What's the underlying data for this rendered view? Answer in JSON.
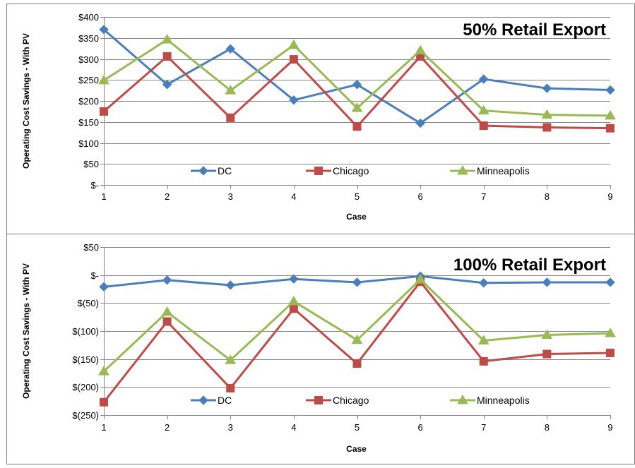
{
  "colors": {
    "DC": "#4a7ebb",
    "Chicago": "#be4b48",
    "Minneapolis": "#98b954",
    "frame": "#7f7f7f",
    "grid": "#868686"
  },
  "chart_data": [
    {
      "type": "line",
      "title": "50% Retail Export",
      "xlabel": "Case",
      "ylabel": "Operating Cost Savings - With PV",
      "categories": [
        "1",
        "2",
        "3",
        "4",
        "5",
        "6",
        "7",
        "8",
        "9"
      ],
      "ylim": [
        0,
        400
      ],
      "yticks": [
        0,
        50,
        100,
        150,
        200,
        250,
        300,
        350,
        400
      ],
      "ytick_labels": [
        "$-",
        "$50",
        "$100",
        "$150",
        "$200",
        "$250",
        "$300",
        "$350",
        "$400"
      ],
      "grid": "horizontal",
      "legend_position": "bottom-inside",
      "series": [
        {
          "name": "DC",
          "marker": "diamond",
          "values": [
            370,
            239,
            324,
            202,
            239,
            147,
            252,
            230,
            226
          ]
        },
        {
          "name": "Chicago",
          "marker": "square",
          "values": [
            175,
            306,
            160,
            299,
            139,
            306,
            141,
            137,
            135
          ]
        },
        {
          "name": "Minneapolis",
          "marker": "triangle",
          "values": [
            249,
            346,
            225,
            333,
            183,
            320,
            177,
            167,
            165
          ]
        }
      ]
    },
    {
      "type": "line",
      "title": "100% Retail Export",
      "xlabel": "Case",
      "ylabel": "Operating Cost Savings - With PV",
      "categories": [
        "1",
        "2",
        "3",
        "4",
        "5",
        "6",
        "7",
        "8",
        "9"
      ],
      "ylim": [
        -250,
        50
      ],
      "yticks": [
        -250,
        -200,
        -150,
        -100,
        -50,
        0,
        50
      ],
      "ytick_labels": [
        "$(250)",
        "$(200)",
        "$(150)",
        "$(100)",
        "$(50)",
        "$-",
        "$50"
      ],
      "grid": "horizontal",
      "legend_position": "bottom-inside",
      "series": [
        {
          "name": "DC",
          "marker": "diamond",
          "values": [
            -21,
            -9,
            -18,
            -7,
            -13,
            -2,
            -14,
            -13,
            -13
          ]
        },
        {
          "name": "Chicago",
          "marker": "square",
          "values": [
            -227,
            -83,
            -202,
            -60,
            -158,
            -12,
            -154,
            -141,
            -139
          ]
        },
        {
          "name": "Minneapolis",
          "marker": "triangle",
          "values": [
            -172,
            -66,
            -152,
            -47,
            -116,
            -8,
            -117,
            -107,
            -104
          ]
        }
      ]
    }
  ]
}
